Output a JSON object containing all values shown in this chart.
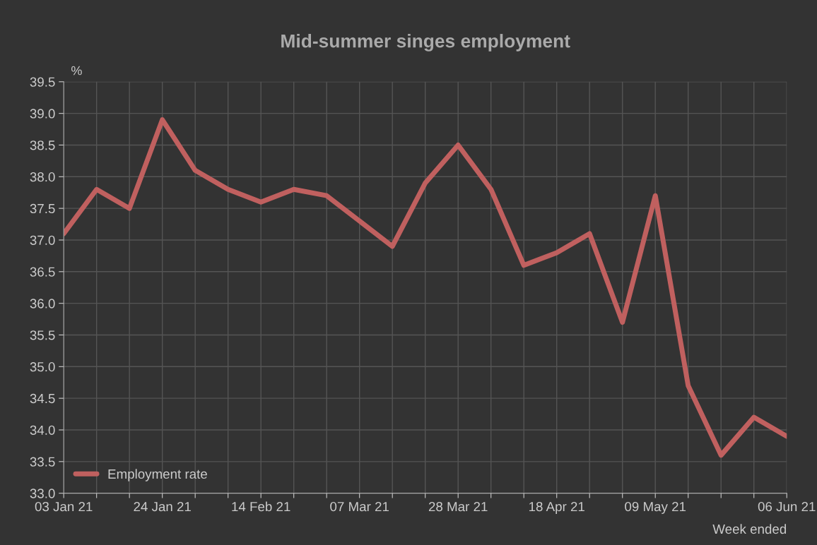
{
  "chart_data": {
    "type": "line",
    "title": "Mid-summer singes employment",
    "ylabel": "%",
    "xlabel": "Week ended",
    "categories": [
      "03 Jan 21",
      null,
      null,
      "24 Jan 21",
      null,
      null,
      "14 Feb 21",
      null,
      null,
      "07 Mar 21",
      null,
      null,
      "28 Mar 21",
      null,
      null,
      "18 Apr 21",
      null,
      null,
      "09 May 21",
      null,
      null,
      null,
      "06 Jun 21"
    ],
    "series": [
      {
        "name": "Employment rate",
        "color": "#c0605f",
        "values": [
          37.1,
          37.8,
          37.5,
          38.9,
          38.1,
          37.8,
          37.6,
          37.8,
          37.7,
          37.3,
          36.9,
          37.9,
          38.5,
          37.8,
          36.6,
          36.8,
          37.1,
          35.7,
          37.7,
          34.7,
          33.6,
          34.2,
          33.9
        ]
      }
    ],
    "ylim": [
      33.0,
      39.5
    ],
    "yticks": [
      {
        "value": 33.0,
        "label": "33.0"
      },
      {
        "value": 33.5,
        "label": "33.5"
      },
      {
        "value": 34.0,
        "label": "34.0"
      },
      {
        "value": 34.5,
        "label": "34.5"
      },
      {
        "value": 35.0,
        "label": "35.0"
      },
      {
        "value": 35.5,
        "label": "35.5"
      },
      {
        "value": 36.0,
        "label": "36.0"
      },
      {
        "value": 36.5,
        "label": "36.5"
      },
      {
        "value": 37.0,
        "label": "37.0"
      },
      {
        "value": 37.5,
        "label": "37.5"
      },
      {
        "value": 38.0,
        "label": "38.0"
      },
      {
        "value": 38.5,
        "label": "38.5"
      },
      {
        "value": 39.0,
        "label": "39.0"
      },
      {
        "value": 39.5,
        "label": "39.5"
      }
    ],
    "grid": true,
    "legend": "bottom left",
    "marker": "none",
    "line_style": "solid"
  }
}
